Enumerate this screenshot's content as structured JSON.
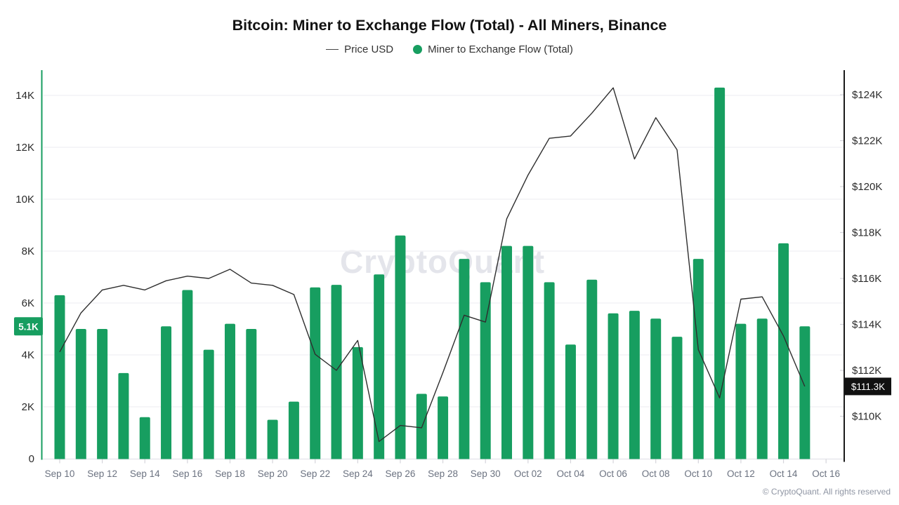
{
  "page": {
    "title": "Bitcoin: Miner to Exchange Flow (Total) - All Miners, Binance",
    "watermark": "CryptoQuant",
    "footer": "© CryptoQuant. All rights reserved"
  },
  "legend": {
    "price": "Price USD",
    "flow": "Miner to Exchange Flow (Total)"
  },
  "colors": {
    "flow_green": "#179e60",
    "price_line": "#2e2e2e",
    "grid": "#f2f2f5",
    "baseline": "#e7e7ec",
    "x_tick": "#d4d4da",
    "axis_black": "#1a1a1a",
    "x_label": "#6b7280",
    "y_label": "#2b2b2b",
    "badge_flow_bg": "#179e60",
    "badge_price_bg": "#111111",
    "badge_text": "#ffffff"
  },
  "chart_data": {
    "type": "bar",
    "title": "Bitcoin: Miner to Exchange Flow (Total) - All Miners, Binance",
    "grid": "horizontal",
    "legend_position": "top",
    "x": [
      "Sep 10",
      "Sep 11",
      "Sep 12",
      "Sep 13",
      "Sep 14",
      "Sep 15",
      "Sep 16",
      "Sep 17",
      "Sep 18",
      "Sep 19",
      "Sep 20",
      "Sep 21",
      "Sep 22",
      "Sep 23",
      "Sep 24",
      "Sep 25",
      "Sep 26",
      "Sep 27",
      "Sep 28",
      "Sep 29",
      "Sep 30",
      "Oct 01",
      "Oct 02",
      "Oct 03",
      "Oct 04",
      "Oct 05",
      "Oct 06",
      "Oct 07",
      "Oct 08",
      "Oct 09",
      "Oct 10",
      "Oct 11",
      "Oct 12",
      "Oct 13",
      "Oct 14",
      "Oct 15"
    ],
    "x_tick_labels": [
      "Sep 10",
      "Sep 12",
      "Sep 14",
      "Sep 16",
      "Sep 18",
      "Sep 20",
      "Sep 22",
      "Sep 24",
      "Sep 26",
      "Sep 28",
      "Sep 30",
      "Oct 02",
      "Oct 04",
      "Oct 06",
      "Oct 08",
      "Oct 10",
      "Oct 12",
      "Oct 14",
      "Oct 16"
    ],
    "series": [
      {
        "name": "Miner to Exchange Flow (Total)",
        "type": "bar",
        "axis": "left",
        "unit": "K BTC",
        "values": [
          6.3,
          5.0,
          5.0,
          3.3,
          1.6,
          5.1,
          6.5,
          4.2,
          5.2,
          5.0,
          1.5,
          2.2,
          6.6,
          6.7,
          4.3,
          7.1,
          8.6,
          2.5,
          2.4,
          7.7,
          6.8,
          8.2,
          8.2,
          6.8,
          4.4,
          6.9,
          5.6,
          5.7,
          5.4,
          4.7,
          7.7,
          14.3,
          5.2,
          5.4,
          8.3,
          5.1
        ]
      },
      {
        "name": "Price USD",
        "type": "line",
        "axis": "right",
        "unit": "K USD",
        "values": [
          112.8,
          114.5,
          115.5,
          115.7,
          115.5,
          115.9,
          116.1,
          116.0,
          116.4,
          115.8,
          115.7,
          115.3,
          112.7,
          112.0,
          113.3,
          108.9,
          109.6,
          109.5,
          111.9,
          114.4,
          114.1,
          118.6,
          120.5,
          122.1,
          122.2,
          123.2,
          124.3,
          121.2,
          123.0,
          121.6,
          112.9,
          110.8,
          115.1,
          115.2,
          113.5,
          111.3
        ]
      }
    ],
    "left_axis": {
      "tick_values": [
        0,
        2,
        4,
        6,
        8,
        10,
        12,
        14
      ],
      "tick_labels": [
        "0",
        "2K",
        "4K",
        "6K",
        "8K",
        "10K",
        "12K",
        "14K"
      ],
      "last_value_label": "5.1K",
      "last_value": 5.1
    },
    "right_axis": {
      "tick_values": [
        110,
        112,
        114,
        116,
        118,
        120,
        122,
        124
      ],
      "tick_labels": [
        "$110K",
        "$112K",
        "$114K",
        "$116K",
        "$118K",
        "$120K",
        "$122K",
        "$124K"
      ],
      "last_value_label": "$111.3K",
      "last_value": 111.3
    }
  }
}
